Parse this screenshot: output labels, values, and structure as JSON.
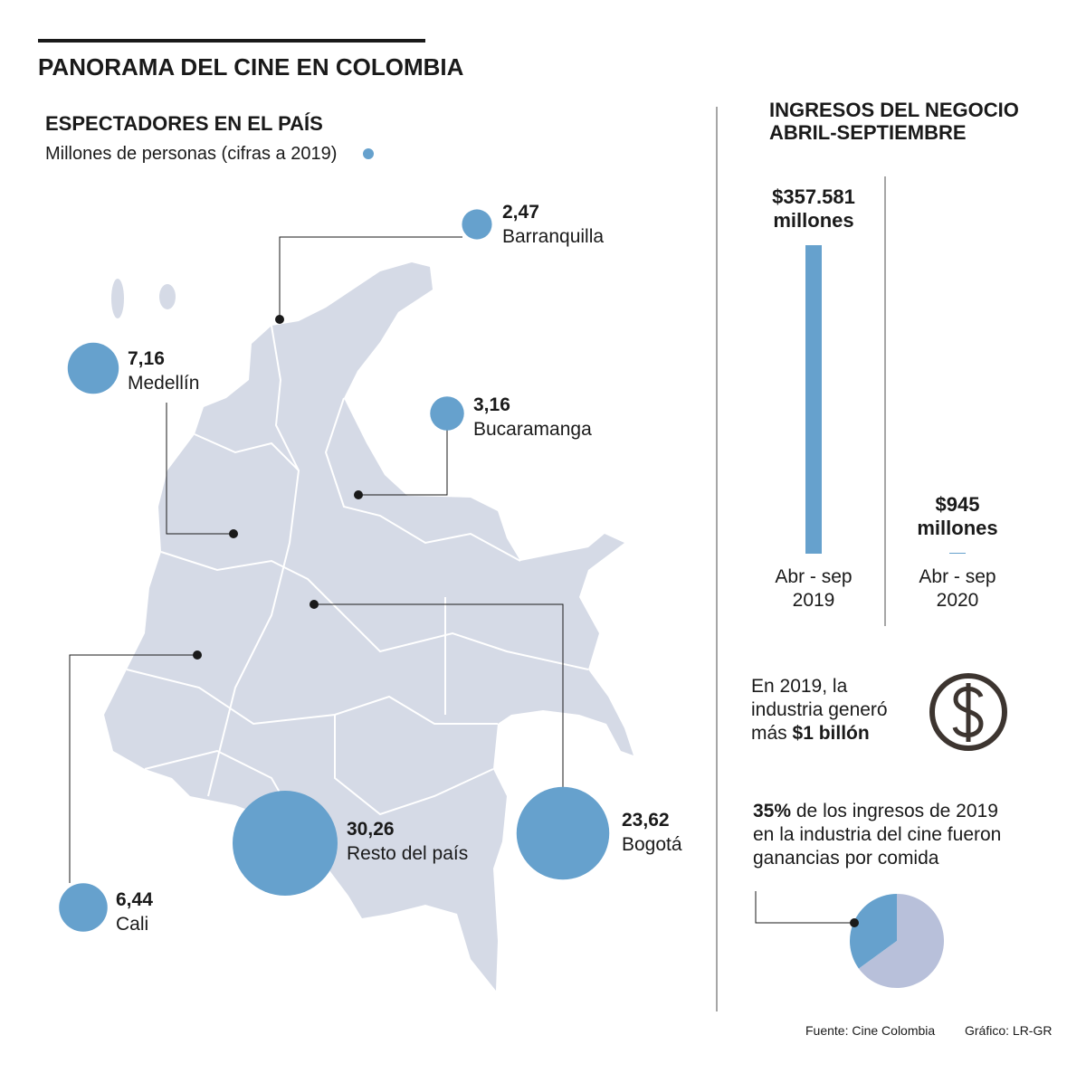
{
  "title": "PANORAMA DEL CINE EN COLOMBIA",
  "source": "Fuente: Cine Colombia",
  "credit": "Gráfico: LR-GR",
  "note": {
    "text": "En 2019, la industria generó más",
    "bold": "$1 billón"
  },
  "chart_data": [
    {
      "type": "bubble",
      "title": "ESPECTADORES EN EL PAÍS",
      "subtitle": "Millones de personas (cifras a 2019)",
      "categories": [
        "Barranquilla",
        "Medellín",
        "Bucaramanga",
        "Bogotá",
        "Resto del país",
        "Cali"
      ],
      "values": [
        2.47,
        7.16,
        3.16,
        23.62,
        30.26,
        6.44
      ],
      "value_labels": [
        "2,47",
        "7,16",
        "3,16",
        "23,62",
        "30,26",
        "6,44"
      ],
      "color": "#66a1cd"
    },
    {
      "type": "bar",
      "title": "INGRESOS DEL NEGOCIO",
      "subtitle": "ABRIL-SEPTIEMBRE",
      "categories": [
        "Abr - sep 2019",
        "Abr - sep 2020"
      ],
      "values": [
        357581,
        945
      ],
      "value_labels": [
        "$357.581 millones",
        "$945 millones"
      ],
      "color": "#66a1cd"
    },
    {
      "type": "pie",
      "annotation": "de los ingresos de 2019 en la industria del cine fueron ganancias por comida",
      "values": [
        35,
        65
      ],
      "value_labels": [
        "35%",
        null
      ],
      "colors": [
        "#66a1cd",
        "#b8c0da"
      ]
    }
  ]
}
